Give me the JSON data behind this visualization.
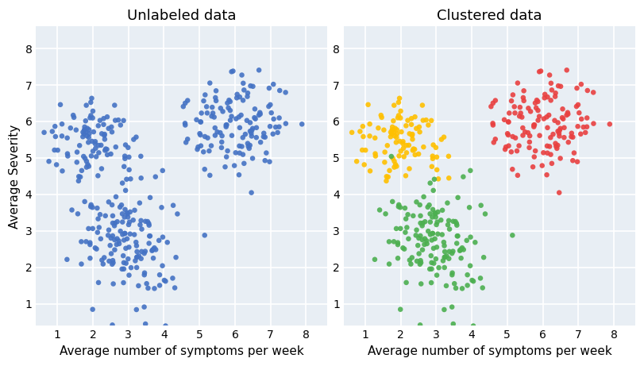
{
  "title_left": "Unlabeled data",
  "title_right": "Clustered data",
  "xlabel": "Average number of symptoms per week",
  "ylabel": "Average Severity",
  "xlim": [
    0.4,
    8.6
  ],
  "ylim": [
    0.4,
    8.6
  ],
  "xticks": [
    1,
    2,
    3,
    4,
    5,
    6,
    7,
    8
  ],
  "yticks": [
    1,
    2,
    3,
    4,
    5,
    6,
    7,
    8
  ],
  "blue_color": "#4472C4",
  "cluster_colors": [
    "#FFC000",
    "#4CAF50",
    "#E84040"
  ],
  "background_color": "#E8EEF4",
  "cluster0": {
    "x_mean": 2.0,
    "x_std": 0.6,
    "y_mean": 5.5,
    "y_std": 0.55,
    "n": 100
  },
  "cluster1": {
    "x_mean": 3.0,
    "x_std": 0.75,
    "y_mean": 2.8,
    "y_std": 0.85,
    "n": 150
  },
  "cluster2": {
    "x_mean": 6.0,
    "x_std": 0.75,
    "y_mean": 6.0,
    "y_std": 0.65,
    "n": 130
  },
  "seed": 7,
  "marker_size": 22,
  "title_fontsize": 13,
  "label_fontsize": 11,
  "tick_fontsize": 10
}
